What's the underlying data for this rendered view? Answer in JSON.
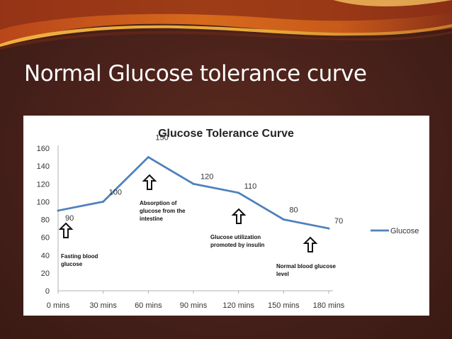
{
  "slide": {
    "title": "Normal Glucose tolerance curve"
  },
  "colors": {
    "background": "#4a2219",
    "series": "#4f81bd",
    "panel": "#ffffff",
    "band_orange": "#d86a1c",
    "band_gold": "#e8a838"
  },
  "chart_data": {
    "type": "line",
    "title": "Glucose Tolerance Curve",
    "xlabel": "",
    "ylabel": "",
    "categories": [
      "0 mins",
      "30 mins",
      "60 mins",
      "90 mins",
      "120 mins",
      "150 mins",
      "180 mins"
    ],
    "series": [
      {
        "name": "Glucose",
        "values": [
          90,
          100,
          150,
          120,
          110,
          80,
          70
        ]
      }
    ],
    "ylim": [
      0,
      160
    ],
    "yticks": [
      0,
      20,
      40,
      60,
      80,
      100,
      120,
      140,
      160
    ],
    "grid": false,
    "legend": "right",
    "annotations": [
      {
        "text": [
          "Fasting blood",
          "glucose"
        ],
        "category": "0 mins"
      },
      {
        "text": [
          "Absorption of",
          "glucose from the",
          "intestine"
        ],
        "category": "60 mins"
      },
      {
        "text": [
          "Glucose utilization",
          "promoted by insulin"
        ],
        "category": "120 mins"
      },
      {
        "text": [
          "Normal blood glucose",
          "level"
        ],
        "category": "150 mins"
      }
    ]
  }
}
